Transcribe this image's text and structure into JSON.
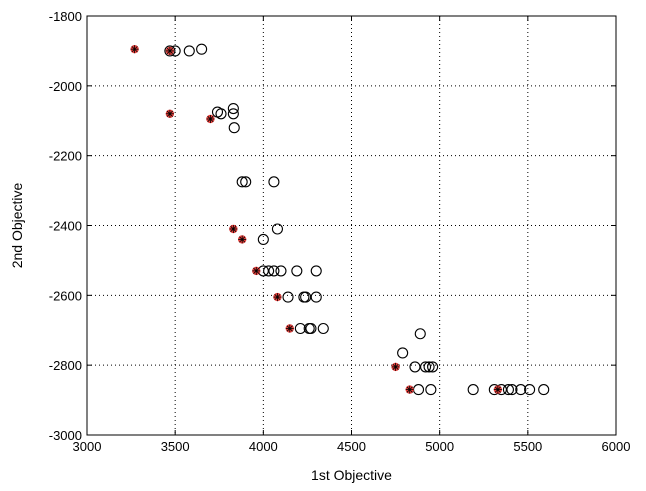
{
  "chart_data": {
    "type": "scatter",
    "title": "",
    "xlabel": "1st Objective",
    "ylabel": "2nd Objective",
    "xlim": [
      3000,
      6000
    ],
    "ylim": [
      -3000,
      -1800
    ],
    "xticks": [
      "3000",
      "3500",
      "4000",
      "4500",
      "5000",
      "5500",
      "6000"
    ],
    "yticks": [
      "-1800",
      "-2000",
      "-2200",
      "-2400",
      "-2600",
      "-2800",
      "-3000"
    ],
    "grid": true,
    "series": [
      {
        "marker": "open-circle",
        "color": "#000000",
        "points": [
          [
            3470,
            -1900
          ],
          [
            3500,
            -1900
          ],
          [
            3580,
            -1900
          ],
          [
            3650,
            -1895
          ],
          [
            3740,
            -2075
          ],
          [
            3760,
            -2080
          ],
          [
            3830,
            -2065
          ],
          [
            3830,
            -2080
          ],
          [
            3835,
            -2120
          ],
          [
            3880,
            -2275
          ],
          [
            3900,
            -2275
          ],
          [
            4060,
            -2275
          ],
          [
            4000,
            -2440
          ],
          [
            4080,
            -2410
          ],
          [
            4000,
            -2530
          ],
          [
            4030,
            -2530
          ],
          [
            4060,
            -2530
          ],
          [
            4100,
            -2530
          ],
          [
            4190,
            -2530
          ],
          [
            4300,
            -2530
          ],
          [
            4140,
            -2605
          ],
          [
            4230,
            -2605
          ],
          [
            4240,
            -2605
          ],
          [
            4300,
            -2605
          ],
          [
            4210,
            -2695
          ],
          [
            4260,
            -2695
          ],
          [
            4270,
            -2695
          ],
          [
            4340,
            -2695
          ],
          [
            4890,
            -2710
          ],
          [
            4790,
            -2765
          ],
          [
            4860,
            -2805
          ],
          [
            4920,
            -2805
          ],
          [
            4940,
            -2805
          ],
          [
            4960,
            -2805
          ],
          [
            4880,
            -2870
          ],
          [
            4950,
            -2870
          ],
          [
            5190,
            -2870
          ],
          [
            5310,
            -2870
          ],
          [
            5350,
            -2870
          ],
          [
            5390,
            -2870
          ],
          [
            5410,
            -2870
          ],
          [
            5460,
            -2870
          ],
          [
            5510,
            -2870
          ],
          [
            5590,
            -2870
          ]
        ]
      },
      {
        "marker": "filled-asterisk",
        "color": "#e8433f",
        "points": [
          [
            3270,
            -1895
          ],
          [
            3470,
            -1900
          ],
          [
            3470,
            -2080
          ],
          [
            3700,
            -2095
          ],
          [
            3830,
            -2410
          ],
          [
            3880,
            -2440
          ],
          [
            3960,
            -2530
          ],
          [
            4080,
            -2605
          ],
          [
            4150,
            -2695
          ],
          [
            4750,
            -2805
          ],
          [
            4830,
            -2870
          ],
          [
            5330,
            -2870
          ]
        ]
      }
    ]
  }
}
